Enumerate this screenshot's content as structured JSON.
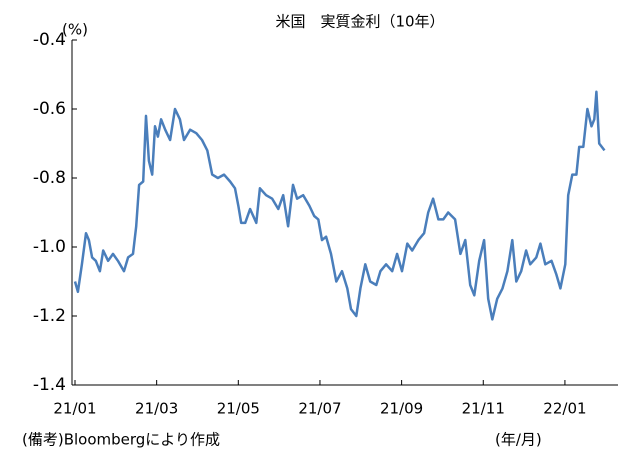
{
  "chart_data": {
    "type": "line",
    "title": "米国　実質金利（10年）",
    "y_unit": "(%)",
    "x_unit": "(年/月)",
    "note": "(備考)Bloombergにより作成",
    "x": [
      0,
      0.07,
      0.17,
      0.27,
      0.34,
      0.42,
      0.51,
      0.61,
      0.69,
      0.81,
      0.93,
      1.05,
      1.2,
      1.3,
      1.42,
      1.5,
      1.57,
      1.67,
      1.74,
      1.81,
      1.89,
      1.96,
      2.03,
      2.11,
      2.21,
      2.33,
      2.45,
      2.57,
      2.67,
      2.82,
      2.97,
      3.11,
      3.24,
      3.36,
      3.5,
      3.65,
      3.8,
      3.92,
      4.0,
      4.07,
      4.17,
      4.29,
      4.44,
      4.53,
      4.68,
      4.83,
      4.98,
      5.1,
      5.22,
      5.34,
      5.44,
      5.59,
      5.74,
      5.86,
      5.96,
      6.05,
      6.15,
      6.27,
      6.4,
      6.54,
      6.67,
      6.76,
      6.89,
      6.99,
      7.11,
      7.23,
      7.38,
      7.48,
      7.62,
      7.77,
      7.89,
      8.01,
      8.14,
      8.26,
      8.41,
      8.55,
      8.65,
      8.77,
      8.9,
      9.02,
      9.14,
      9.31,
      9.44,
      9.56,
      9.68,
      9.78,
      9.9,
      10.02,
      10.12,
      10.22,
      10.34,
      10.47,
      10.59,
      10.71,
      10.81,
      10.93,
      11.05,
      11.15,
      11.3,
      11.4,
      11.52,
      11.67,
      11.79,
      11.89,
      12.01,
      12.08,
      12.18,
      12.28,
      12.35,
      12.45,
      12.55,
      12.65,
      12.72,
      12.77,
      12.84,
      12.97
    ],
    "series": [
      {
        "name": "実質金利",
        "color": "#4a7ebb",
        "values": [
          -1.1,
          -1.13,
          -1.05,
          -0.96,
          -0.98,
          -1.03,
          -1.04,
          -1.07,
          -1.01,
          -1.04,
          -1.02,
          -1.04,
          -1.07,
          -1.03,
          -1.02,
          -0.94,
          -0.82,
          -0.81,
          -0.62,
          -0.75,
          -0.79,
          -0.65,
          -0.68,
          -0.63,
          -0.66,
          -0.69,
          -0.6,
          -0.63,
          -0.69,
          -0.66,
          -0.67,
          -0.69,
          -0.72,
          -0.79,
          -0.8,
          -0.79,
          -0.81,
          -0.83,
          -0.88,
          -0.93,
          -0.93,
          -0.89,
          -0.93,
          -0.83,
          -0.85,
          -0.86,
          -0.89,
          -0.85,
          -0.94,
          -0.82,
          -0.86,
          -0.85,
          -0.88,
          -0.91,
          -0.92,
          -0.98,
          -0.97,
          -1.02,
          -1.1,
          -1.07,
          -1.12,
          -1.18,
          -1.2,
          -1.12,
          -1.05,
          -1.1,
          -1.11,
          -1.07,
          -1.05,
          -1.07,
          -1.02,
          -1.07,
          -0.99,
          -1.01,
          -0.98,
          -0.96,
          -0.9,
          -0.86,
          -0.92,
          -0.92,
          -0.9,
          -0.92,
          -1.02,
          -0.98,
          -1.11,
          -1.14,
          -1.04,
          -0.98,
          -1.15,
          -1.21,
          -1.15,
          -1.12,
          -1.07,
          -0.98,
          -1.1,
          -1.07,
          -1.01,
          -1.05,
          -1.03,
          -0.99,
          -1.05,
          -1.04,
          -1.08,
          -1.12,
          -1.05,
          -0.85,
          -0.79,
          -0.79,
          -0.71,
          -0.71,
          -0.6,
          -0.65,
          -0.63,
          -0.55,
          -0.7,
          -0.72
        ]
      }
    ],
    "xlim": [
      0,
      13.3
    ],
    "xticks": [
      {
        "value": 0,
        "label": "21/01"
      },
      {
        "value": 2,
        "label": "21/03"
      },
      {
        "value": 4,
        "label": "21/05"
      },
      {
        "value": 6,
        "label": "21/07"
      },
      {
        "value": 8,
        "label": "21/09"
      },
      {
        "value": 10,
        "label": "21/11"
      },
      {
        "value": 12,
        "label": "22/01"
      }
    ],
    "ylim": [
      -1.4,
      -0.4
    ],
    "yticks": [
      -1.4,
      -1.2,
      {
        "value": -1.0,
        "label": "-1.0"
      },
      -0.8,
      -0.6,
      -0.4
    ],
    "grid": false
  }
}
